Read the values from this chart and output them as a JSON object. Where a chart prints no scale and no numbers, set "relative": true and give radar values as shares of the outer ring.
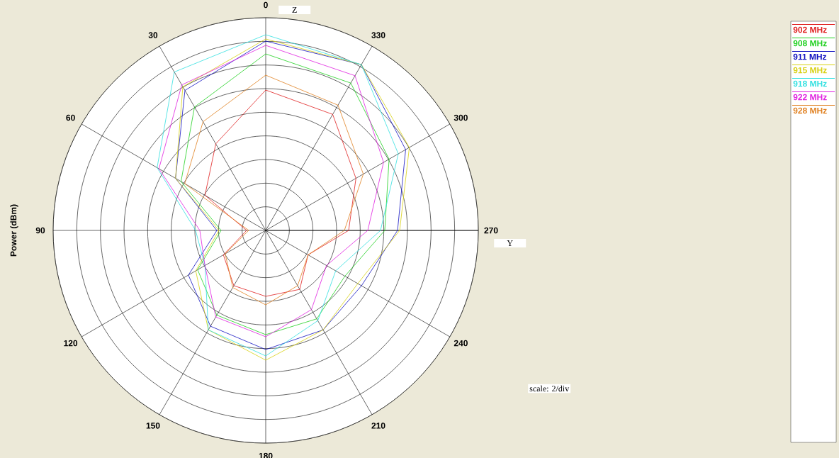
{
  "chart_data": {
    "type": "radar",
    "relative": true,
    "ylabel": "Power (dBm)",
    "legend": "right",
    "grid": true,
    "categories": [
      "0",
      "330",
      "300",
      "270",
      "240",
      "210",
      "180",
      "150",
      "120",
      "90",
      "60",
      "30"
    ],
    "series": [
      {
        "name": "902 MHz",
        "color": "#e02020",
        "values": [
          0.66,
          0.63,
          0.49,
          0.39,
          0.23,
          0.32,
          0.31,
          0.3,
          0.23,
          0.09,
          0.33,
          0.47
        ]
      },
      {
        "name": "908 MHz",
        "color": "#20d020",
        "values": [
          0.83,
          0.8,
          0.67,
          0.56,
          0.43,
          0.48,
          0.49,
          0.46,
          0.37,
          0.21,
          0.46,
          0.67
        ]
      },
      {
        "name": "911 MHz",
        "color": "#1010c0",
        "values": [
          0.89,
          0.9,
          0.76,
          0.62,
          0.52,
          0.54,
          0.56,
          0.52,
          0.42,
          0.23,
          0.49,
          0.76
        ]
      },
      {
        "name": "915 MHz",
        "color": "#d8d010",
        "values": [
          0.9,
          0.9,
          0.78,
          0.63,
          0.5,
          0.54,
          0.61,
          0.54,
          0.38,
          0.22,
          0.49,
          0.78
        ]
      },
      {
        "name": "918 MHz",
        "color": "#30e0e0",
        "values": [
          0.92,
          0.9,
          0.72,
          0.54,
          0.38,
          0.49,
          0.59,
          0.54,
          0.33,
          0.33,
          0.59,
          0.86
        ]
      },
      {
        "name": "922 MHz",
        "color": "#e020e0",
        "values": [
          0.87,
          0.84,
          0.64,
          0.48,
          0.33,
          0.43,
          0.5,
          0.47,
          0.33,
          0.31,
          0.58,
          0.79
        ]
      },
      {
        "name": "928 MHz",
        "color": "#e08020",
        "values": [
          0.73,
          0.68,
          0.53,
          0.37,
          0.23,
          0.3,
          0.35,
          0.31,
          0.22,
          0.08,
          0.44,
          0.59
        ]
      }
    ],
    "annotations": [
      "Z",
      "Y",
      "scale: 2/div"
    ]
  }
}
